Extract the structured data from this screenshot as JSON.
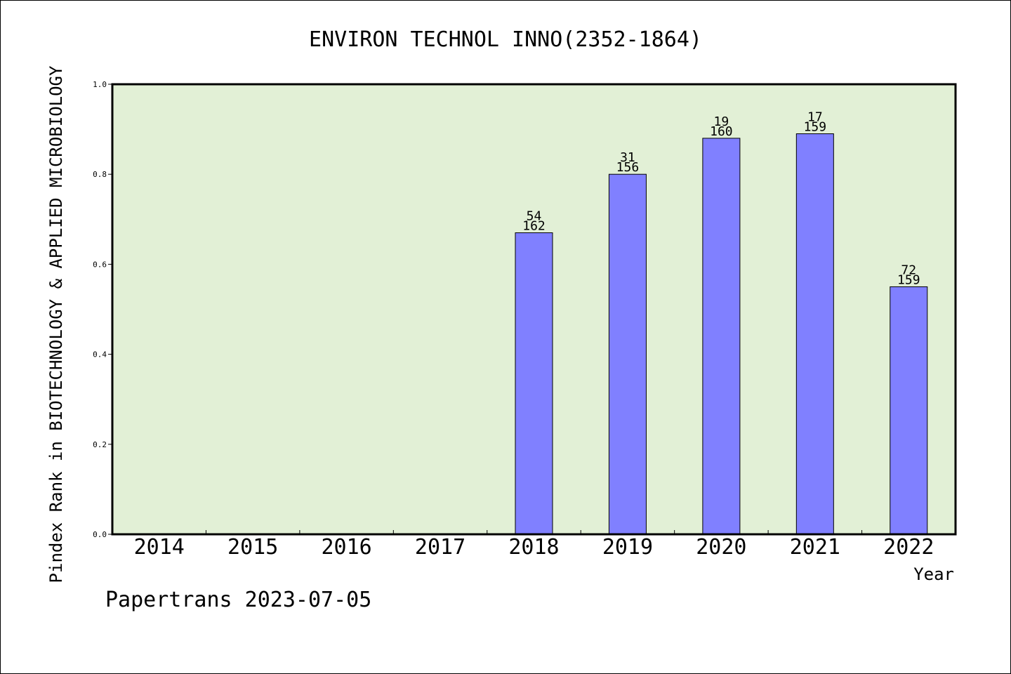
{
  "chart_data": {
    "type": "bar",
    "title": "ENVIRON TECHNOL INNO(2352-1864)",
    "ylabel": "Pindex Rank in BIOTECHNOLOGY & APPLIED MICROBIOLOGY",
    "xlabel": "Year",
    "categories": [
      "2014",
      "2015",
      "2016",
      "2017",
      "2018",
      "2019",
      "2020",
      "2021",
      "2022"
    ],
    "values": [
      null,
      null,
      null,
      null,
      0.67,
      0.8,
      0.88,
      0.89,
      0.55
    ],
    "rank_labels": [
      "",
      "",
      "",
      "",
      "54",
      "31",
      "19",
      "17",
      "72"
    ],
    "total_labels": [
      "",
      "",
      "",
      "",
      "162",
      "156",
      "160",
      "159",
      "159"
    ],
    "ylim": [
      0,
      1.0
    ],
    "yticks": [
      "0.0",
      "0.2",
      "0.4",
      "0.6",
      "0.8",
      "1.0"
    ],
    "grid": false,
    "colors": {
      "plot_background": "#e2f0d6",
      "bar": "#8080ff"
    }
  },
  "footer": "Papertrans 2023-07-05"
}
